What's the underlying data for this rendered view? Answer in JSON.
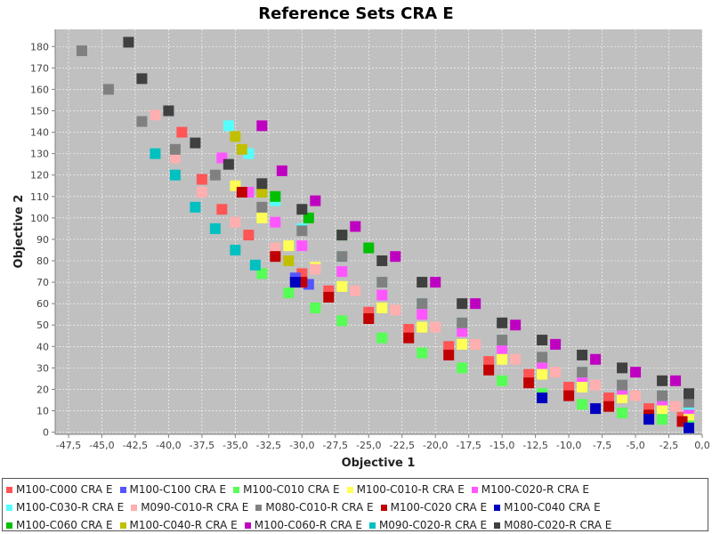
{
  "chart_data": {
    "type": "scatter",
    "title": "Reference Sets CRA E",
    "xlabel": "Objective 1",
    "ylabel": "Objective 2",
    "xlim": [
      -48.5,
      0
    ],
    "ylim": [
      -1,
      188
    ],
    "x_ticks": [
      "-47,5",
      "-45,0",
      "-42,5",
      "-40,0",
      "-37,5",
      "-35,0",
      "-32,5",
      "-30,0",
      "-27,5",
      "-25,0",
      "-22,5",
      "-20,0",
      "-17,5",
      "-15,0",
      "-12,5",
      "-10,0",
      "-7,5",
      "-5,0",
      "-2,5",
      "0,0"
    ],
    "x_tick_values": [
      -47.5,
      -45,
      -42.5,
      -40,
      -37.5,
      -35,
      -32.5,
      -30,
      -27.5,
      -25,
      -22.5,
      -20,
      -17.5,
      -15,
      -12.5,
      -10,
      -7.5,
      -5,
      -2.5,
      0
    ],
    "y_ticks": [
      "0",
      "10",
      "20",
      "30",
      "40",
      "50",
      "60",
      "70",
      "80",
      "90",
      "100",
      "110",
      "120",
      "130",
      "140",
      "150",
      "160",
      "170",
      "180"
    ],
    "y_tick_values": [
      0,
      10,
      20,
      30,
      40,
      50,
      60,
      70,
      80,
      90,
      100,
      110,
      120,
      130,
      140,
      150,
      160,
      170,
      180
    ],
    "grid": true,
    "legend_position": "bottom",
    "series": [
      {
        "name": "M100-C000 CRA E",
        "color": "#ff5555",
        "points": [
          [
            -39.0,
            140
          ],
          [
            -37.5,
            118
          ],
          [
            -36.0,
            104
          ],
          [
            -34.0,
            92
          ],
          [
            -32.0,
            83
          ],
          [
            -30.0,
            74
          ],
          [
            -28.0,
            66
          ],
          [
            -25.0,
            56
          ],
          [
            -22.0,
            48
          ],
          [
            -19.0,
            40
          ],
          [
            -16.0,
            33
          ],
          [
            -13.0,
            27
          ],
          [
            -10.0,
            21
          ],
          [
            -7.0,
            16
          ],
          [
            -4.0,
            11
          ],
          [
            -1.5,
            7
          ]
        ]
      },
      {
        "name": "M100-C100 CRA E",
        "color": "#5555ff",
        "points": [
          [
            -30.5,
            72
          ],
          [
            -29.5,
            69
          ]
        ]
      },
      {
        "name": "M100-C010 CRA E",
        "color": "#55ff55",
        "points": [
          [
            -33.0,
            74
          ],
          [
            -31.0,
            65
          ],
          [
            -29.0,
            58
          ],
          [
            -27.0,
            52
          ],
          [
            -24.0,
            44
          ],
          [
            -21.0,
            37
          ],
          [
            -18.0,
            30
          ],
          [
            -15.0,
            24
          ],
          [
            -12.0,
            18
          ],
          [
            -9.0,
            13
          ],
          [
            -6.0,
            9
          ],
          [
            -3.0,
            6
          ],
          [
            -1.0,
            4
          ]
        ]
      },
      {
        "name": "M100-C010-R CRA E",
        "color": "#ffff55",
        "points": [
          [
            -35.0,
            115
          ],
          [
            -33.0,
            100
          ],
          [
            -31.0,
            87
          ],
          [
            -29.0,
            77
          ],
          [
            -27.0,
            68
          ],
          [
            -24.0,
            58
          ],
          [
            -21.0,
            49
          ],
          [
            -18.0,
            41
          ],
          [
            -15.0,
            34
          ],
          [
            -12.0,
            27
          ],
          [
            -9.0,
            21
          ],
          [
            -6.0,
            16
          ],
          [
            -3.0,
            11
          ],
          [
            -1.0,
            8
          ]
        ]
      },
      {
        "name": "M100-C020-R CRA E",
        "color": "#ff55ff",
        "points": [
          [
            -36.0,
            128
          ],
          [
            -34.0,
            112
          ],
          [
            -32.0,
            98
          ],
          [
            -30.0,
            87
          ],
          [
            -27.0,
            75
          ],
          [
            -24.0,
            64
          ],
          [
            -21.0,
            55
          ],
          [
            -18.0,
            47
          ],
          [
            -15.0,
            39
          ],
          [
            -12.0,
            32
          ],
          [
            -9.0,
            26
          ],
          [
            -6.0,
            20
          ],
          [
            -3.0,
            15
          ],
          [
            -1.0,
            11
          ]
        ]
      },
      {
        "name": "M100-C030-R CRA E",
        "color": "#55ffff",
        "points": [
          [
            -35.5,
            143
          ],
          [
            -34.0,
            130
          ],
          [
            -32.0,
            108
          ],
          [
            -30.0,
            95
          ],
          [
            -27.0,
            82
          ],
          [
            -24.0,
            70
          ],
          [
            -21.0,
            60
          ],
          [
            -18.0,
            51
          ],
          [
            -15.0,
            43
          ],
          [
            -12.0,
            35
          ],
          [
            -9.0,
            28
          ],
          [
            -6.0,
            22
          ],
          [
            -3.0,
            17
          ],
          [
            -1.0,
            13
          ]
        ]
      },
      {
        "name": "M090-C010-R CRA E",
        "color": "#ffafaf",
        "points": [
          [
            -41.0,
            148
          ],
          [
            -39.5,
            128
          ],
          [
            -37.5,
            112
          ],
          [
            -35.0,
            98
          ],
          [
            -32.0,
            86
          ],
          [
            -29.0,
            76
          ],
          [
            -26.0,
            66
          ],
          [
            -23.0,
            57
          ],
          [
            -20.0,
            49
          ],
          [
            -17.0,
            41
          ],
          [
            -14.0,
            34
          ],
          [
            -11.0,
            28
          ],
          [
            -8.0,
            22
          ],
          [
            -5.0,
            17
          ],
          [
            -2.0,
            12
          ]
        ]
      },
      {
        "name": "M080-C010-R CRA E",
        "color": "#808080",
        "points": [
          [
            -46.5,
            178
          ],
          [
            -44.5,
            160
          ],
          [
            -42.0,
            145
          ],
          [
            -39.5,
            132
          ],
          [
            -36.5,
            120
          ],
          [
            -33.0,
            105
          ],
          [
            -30.0,
            94
          ],
          [
            -27.0,
            82
          ],
          [
            -24.0,
            70
          ],
          [
            -21.0,
            60
          ],
          [
            -18.0,
            51
          ],
          [
            -15.0,
            43
          ],
          [
            -12.0,
            35
          ],
          [
            -9.0,
            28
          ],
          [
            -6.0,
            22
          ],
          [
            -3.0,
            17
          ],
          [
            -1.0,
            14
          ]
        ]
      },
      {
        "name": "M100-C020 CRA E",
        "color": "#c00000",
        "points": [
          [
            -34.5,
            112
          ],
          [
            -32.0,
            82
          ],
          [
            -30.0,
            70
          ],
          [
            -28.0,
            63
          ],
          [
            -25.0,
            53
          ],
          [
            -22.0,
            44
          ],
          [
            -19.0,
            36
          ],
          [
            -16.0,
            29
          ],
          [
            -13.0,
            23
          ],
          [
            -10.0,
            17
          ],
          [
            -7.0,
            12
          ],
          [
            -4.0,
            8
          ],
          [
            -1.5,
            5
          ]
        ]
      },
      {
        "name": "M100-C040 CRA E",
        "color": "#0000c0",
        "points": [
          [
            -30.5,
            70
          ],
          [
            -12.0,
            16
          ],
          [
            -8.0,
            11
          ],
          [
            -4.0,
            6
          ],
          [
            -1.0,
            2
          ]
        ]
      },
      {
        "name": "M100-C060 CRA E",
        "color": "#00c000",
        "points": [
          [
            -32.0,
            110
          ],
          [
            -29.5,
            100
          ],
          [
            -27.0,
            92
          ],
          [
            -25.0,
            86
          ]
        ]
      },
      {
        "name": "M100-C040-R CRA E",
        "color": "#c0c000",
        "points": [
          [
            -35.0,
            138
          ],
          [
            -34.5,
            132
          ],
          [
            -33.0,
            112
          ],
          [
            -31.0,
            80
          ]
        ]
      },
      {
        "name": "M100-C060-R CRA E",
        "color": "#c000c0",
        "points": [
          [
            -33.0,
            143
          ],
          [
            -31.5,
            122
          ],
          [
            -29.0,
            108
          ],
          [
            -26.0,
            96
          ],
          [
            -23.0,
            82
          ],
          [
            -20.0,
            70
          ],
          [
            -17.0,
            60
          ],
          [
            -14.0,
            50
          ],
          [
            -11.0,
            41
          ],
          [
            -8.0,
            34
          ],
          [
            -5.0,
            28
          ],
          [
            -2.0,
            24
          ]
        ]
      },
      {
        "name": "M090-C020-R CRA E",
        "color": "#00c0c0",
        "points": [
          [
            -41.0,
            130
          ],
          [
            -39.5,
            120
          ],
          [
            -38.0,
            105
          ],
          [
            -36.5,
            95
          ],
          [
            -35.0,
            85
          ],
          [
            -33.5,
            78
          ]
        ]
      },
      {
        "name": "M080-C020-R CRA E",
        "color": "#404040",
        "points": [
          [
            -43.0,
            182
          ],
          [
            -42.0,
            165
          ],
          [
            -40.0,
            150
          ],
          [
            -38.0,
            135
          ],
          [
            -35.5,
            125
          ],
          [
            -33.0,
            116
          ],
          [
            -30.0,
            104
          ],
          [
            -27.0,
            92
          ],
          [
            -24.0,
            80
          ],
          [
            -21.0,
            70
          ],
          [
            -18.0,
            60
          ],
          [
            -15.0,
            51
          ],
          [
            -12.0,
            43
          ],
          [
            -9.0,
            36
          ],
          [
            -6.0,
            30
          ],
          [
            -3.0,
            24
          ],
          [
            -1.0,
            18
          ]
        ]
      }
    ]
  },
  "colors": {
    "plot_background": "#c0c0c0",
    "grid": "#ffffff"
  }
}
